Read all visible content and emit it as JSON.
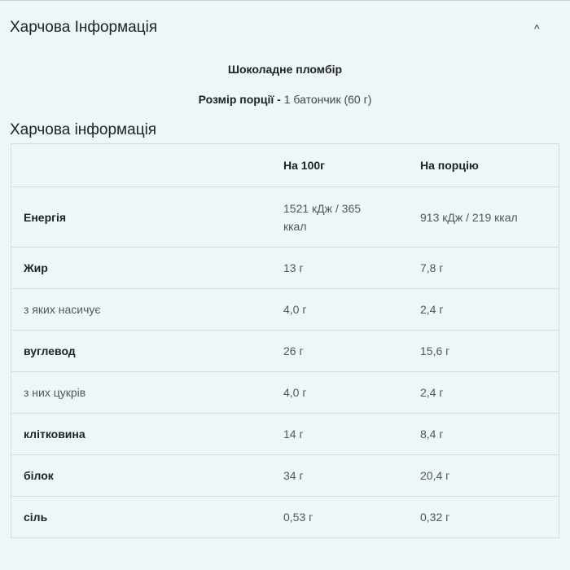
{
  "header": {
    "title": "Харчова Інформація"
  },
  "product": {
    "name": "Шоколадне пломбір"
  },
  "serving": {
    "label": "Розмір порції -",
    "value": "1 батончик (60 г)"
  },
  "table": {
    "title": "Харчова інформація",
    "columns": [
      "На 100г",
      "На порцію"
    ],
    "rows": [
      {
        "label": "Енергія",
        "bold": true,
        "per_100g": "1521 кДж / 365 ккал",
        "per_serving": "913 кДж / 219 ккал"
      },
      {
        "label": "Жир",
        "bold": true,
        "per_100g": "13 г",
        "per_serving": "7,8 г"
      },
      {
        "label": "з яких насичує",
        "bold": false,
        "per_100g": "4,0 г",
        "per_serving": "2,4 г"
      },
      {
        "label": "вуглевод",
        "bold": true,
        "per_100g": "26 г",
        "per_serving": "15,6 г"
      },
      {
        "label": "з них цукрів",
        "bold": false,
        "per_100g": "4,0 г",
        "per_serving": "2,4 г"
      },
      {
        "label": "клітковина",
        "bold": true,
        "per_100g": "14 г",
        "per_serving": "8,4 г"
      },
      {
        "label": "білок",
        "bold": true,
        "per_100g": "34 г",
        "per_serving": "20,4 г"
      },
      {
        "label": "сіль",
        "bold": true,
        "per_100g": "0,53 г",
        "per_serving": "0,32 г"
      }
    ]
  }
}
